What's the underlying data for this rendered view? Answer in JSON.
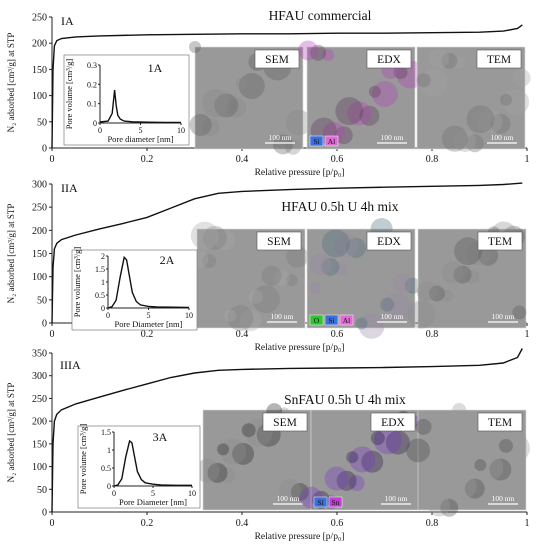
{
  "chart_data": [
    {
      "type": "line",
      "panel_label": "IA",
      "title": "HFAU commercial",
      "xlabel": "Relative pressure [p/p₀]",
      "ylabel": "N₂ adsorbed [cm³/g] at STP",
      "xlim": [
        0,
        1
      ],
      "ylim": [
        0,
        250
      ],
      "xticks": [
        "0",
        "0.2",
        "0.4",
        "0.6",
        "0.8",
        "1"
      ],
      "yticks": [
        "0",
        "50",
        "100",
        "150",
        "200",
        "250"
      ],
      "series": [
        {
          "x": [
            0.0,
            0.002,
            0.005,
            0.01,
            0.02,
            0.05,
            0.1,
            0.2,
            0.3,
            0.4,
            0.5,
            0.6,
            0.7,
            0.8,
            0.9,
            0.95,
            0.98,
            0.99
          ],
          "y": [
            0,
            150,
            195,
            205,
            209,
            212,
            214,
            216,
            217,
            218,
            218,
            219,
            219,
            220,
            221,
            223,
            228,
            235
          ]
        }
      ],
      "inset": {
        "label": "1A",
        "xlabel": "Pore diameter [nm]",
        "ylabel": "Pore volume [cm³/g]",
        "xlim": [
          0,
          10
        ],
        "ylim": [
          0,
          0.3
        ],
        "xticks": [
          "0",
          "5",
          "10"
        ],
        "yticks": [
          "0",
          "0.1",
          "0.2",
          "0.3"
        ],
        "x": [
          0,
          1,
          1.5,
          1.8,
          2.0,
          2.2,
          2.5,
          3,
          4,
          6,
          8,
          10
        ],
        "y": [
          0.005,
          0.01,
          0.05,
          0.17,
          0.09,
          0.04,
          0.02,
          0.01,
          0.006,
          0.004,
          0.003,
          0.003
        ]
      },
      "micrographs": [
        {
          "label": "SEM",
          "scale": "100 nm",
          "tone": "#5e5e5e",
          "tone2": "#8a8a8a"
        },
        {
          "label": "EDX",
          "scale": "100 nm",
          "tone": "#b145b6",
          "tone2": "#5a3a5a",
          "legend": [
            {
              "text": "Si",
              "color": "#3b6fe0"
            },
            {
              "text": "Al",
              "color": "#e06ad6"
            }
          ]
        },
        {
          "label": "TEM",
          "scale": "100 nm",
          "tone": "#a3a3a3",
          "tone2": "#6f6f6f"
        }
      ]
    },
    {
      "type": "line",
      "panel_label": "IIA",
      "title": "HFAU 0.5h U 4h mix",
      "xlabel": "Relative pressure [p/p₀]",
      "ylabel": "N₂ adsorbed [cm³/g] at STP",
      "xlim": [
        0,
        1
      ],
      "ylim": [
        0,
        300
      ],
      "xticks": [
        "0",
        "0.2",
        "0.4",
        "0.6",
        "0.8",
        "1"
      ],
      "yticks": [
        "0",
        "50",
        "100",
        "150",
        "200",
        "250",
        "300"
      ],
      "series": [
        {
          "x": [
            0.0,
            0.002,
            0.005,
            0.01,
            0.02,
            0.05,
            0.1,
            0.15,
            0.2,
            0.25,
            0.3,
            0.35,
            0.4,
            0.5,
            0.6,
            0.7,
            0.8,
            0.9,
            0.95,
            0.99
          ],
          "y": [
            0,
            120,
            160,
            172,
            180,
            190,
            203,
            215,
            228,
            248,
            268,
            280,
            284,
            288,
            291,
            293,
            295,
            297,
            299,
            302
          ]
        }
      ],
      "inset": {
        "label": "2A",
        "xlabel": "Pore Diameter [nm]",
        "ylabel": "Pore volume [cm³/g]",
        "xlim": [
          0,
          10
        ],
        "ylim": [
          0,
          2.0
        ],
        "xticks": [
          "0",
          "5",
          "10"
        ],
        "yticks": [
          "0",
          "0.5",
          "1",
          "1.5",
          "2"
        ],
        "x": [
          0,
          0.5,
          1.0,
          1.5,
          2.0,
          2.3,
          2.6,
          3.0,
          3.5,
          4.0,
          5,
          6,
          8,
          10
        ],
        "y": [
          0.0,
          0.05,
          0.3,
          1.2,
          1.95,
          1.85,
          1.3,
          0.6,
          0.25,
          0.12,
          0.06,
          0.04,
          0.03,
          0.02
        ]
      },
      "micrographs": [
        {
          "label": "SEM",
          "scale": "100 nm",
          "tone": "#7a7a7a",
          "tone2": "#a8a8a8"
        },
        {
          "label": "EDX",
          "scale": "100 nm",
          "tone": "#9a8aa6",
          "tone2": "#4f6f7a",
          "legend": [
            {
              "text": "O",
              "color": "#31c331"
            },
            {
              "text": "Si",
              "color": "#3b6fe0"
            },
            {
              "text": "Al",
              "color": "#e06ad6"
            }
          ]
        },
        {
          "label": "TEM",
          "scale": "100 nm",
          "tone": "#8d8d8d",
          "tone2": "#5a5a5a"
        }
      ]
    },
    {
      "type": "line",
      "panel_label": "IIIA",
      "title": "SnFAU 0.5h U 4h mix",
      "xlabel": "Relative pressure [p/p₀]",
      "ylabel": "N₂ adsorbed [cm³/g] at STP",
      "xlim": [
        0,
        1
      ],
      "ylim": [
        0,
        350
      ],
      "xticks": [
        "0",
        "0.2",
        "0.4",
        "0.6",
        "0.8",
        "1"
      ],
      "yticks": [
        "0",
        "50",
        "100",
        "150",
        "200",
        "250",
        "300",
        "350"
      ],
      "series": [
        {
          "x": [
            0.0,
            0.002,
            0.005,
            0.01,
            0.02,
            0.05,
            0.1,
            0.15,
            0.2,
            0.25,
            0.3,
            0.35,
            0.4,
            0.5,
            0.6,
            0.7,
            0.8,
            0.9,
            0.95,
            0.98,
            0.99
          ],
          "y": [
            0,
            150,
            200,
            215,
            225,
            238,
            253,
            268,
            282,
            296,
            306,
            312,
            314,
            316,
            317,
            318,
            320,
            323,
            328,
            340,
            360
          ]
        }
      ],
      "inset": {
        "label": "3A",
        "xlabel": "Pore Diameter [nm]",
        "ylabel": "Pore volume [cm³/g]",
        "xlim": [
          0,
          10
        ],
        "ylim": [
          0,
          1.5
        ],
        "xticks": [
          "0",
          "5",
          "10"
        ],
        "yticks": [
          "0",
          "0.5",
          "1",
          "1.5"
        ],
        "x": [
          0,
          0.5,
          1.0,
          1.5,
          2.0,
          2.3,
          2.6,
          3.0,
          3.5,
          4.0,
          5,
          6,
          8,
          10
        ],
        "y": [
          0.0,
          0.03,
          0.2,
          0.8,
          1.25,
          1.2,
          0.85,
          0.4,
          0.18,
          0.09,
          0.05,
          0.03,
          0.02,
          0.02
        ]
      },
      "micrographs": [
        {
          "label": "SEM",
          "scale": "100 nm",
          "tone": "#8c8c8c",
          "tone2": "#2a2a2a"
        },
        {
          "label": "EDX",
          "scale": "100 nm",
          "tone": "#7c3bc6",
          "tone2": "#2c1b4a",
          "legend": [
            {
              "text": "Si",
              "color": "#3b6fe0"
            },
            {
              "text": "Sn",
              "color": "#c33cd6"
            }
          ]
        },
        {
          "label": "TEM",
          "scale": "100 nm",
          "tone": "#9a9a9a",
          "tone2": "#4a4a4a"
        }
      ]
    }
  ]
}
